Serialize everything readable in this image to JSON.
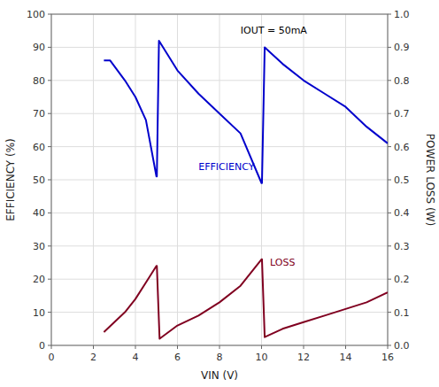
{
  "chart_data": {
    "type": "line",
    "xlabel": "VIN (V)",
    "ylabel": "EFFICIENCY (%)",
    "y2label": "POWER LOSS (W)",
    "xlim": [
      0,
      16
    ],
    "xticks": [
      0,
      2,
      4,
      6,
      8,
      10,
      12,
      14,
      16
    ],
    "ylim": [
      0,
      100
    ],
    "yticks": [
      0,
      10,
      20,
      30,
      40,
      50,
      60,
      70,
      80,
      90,
      100
    ],
    "y2lim": [
      0,
      1
    ],
    "y2ticks": [
      {
        "value": 0,
        "label": "0.0"
      },
      0.1,
      0.2,
      0.3,
      0.4,
      0.5,
      0.6,
      0.7,
      0.8,
      0.9,
      {
        "value": 1,
        "label": "1.0"
      }
    ],
    "grid": true,
    "series": [
      {
        "color": "#0000cc",
        "x": [
          2.5,
          2.8,
          3.5,
          4.0,
          4.5,
          5.0,
          5.02,
          5.12,
          6.0,
          7.0,
          8.0,
          9.0,
          10.0,
          10.02,
          10.15,
          11.0,
          12.0,
          13.0,
          14.0,
          15.0,
          16.0
        ],
        "values": [
          86,
          86,
          80,
          75,
          68,
          51,
          51,
          92,
          83,
          76,
          70,
          64,
          49,
          49,
          90,
          85,
          80,
          76,
          72,
          66,
          61
        ]
      },
      {
        "color": "#800020",
        "x": [
          2.5,
          3.0,
          3.5,
          4.0,
          4.5,
          5.0,
          5.02,
          5.15,
          6.0,
          7.0,
          8.0,
          9.0,
          10.0,
          10.02,
          10.15,
          11.0,
          12.0,
          13.0,
          14.0,
          15.0,
          16.0
        ],
        "values": [
          4,
          7,
          10,
          14,
          19,
          24,
          24,
          2,
          6,
          9,
          13,
          18,
          26,
          26,
          2.5,
          5,
          7,
          9,
          11,
          13,
          16
        ]
      }
    ],
    "annotations": [
      {
        "text": "IOUT = 50mA",
        "x": 9.0,
        "y": 95,
        "color": "black"
      },
      {
        "text": "EFFICIENCY",
        "x": 7.0,
        "y": 54,
        "color": "#0000cc"
      },
      {
        "text": "LOSS",
        "x": 10.4,
        "y": 25,
        "color": "#800020"
      }
    ]
  }
}
